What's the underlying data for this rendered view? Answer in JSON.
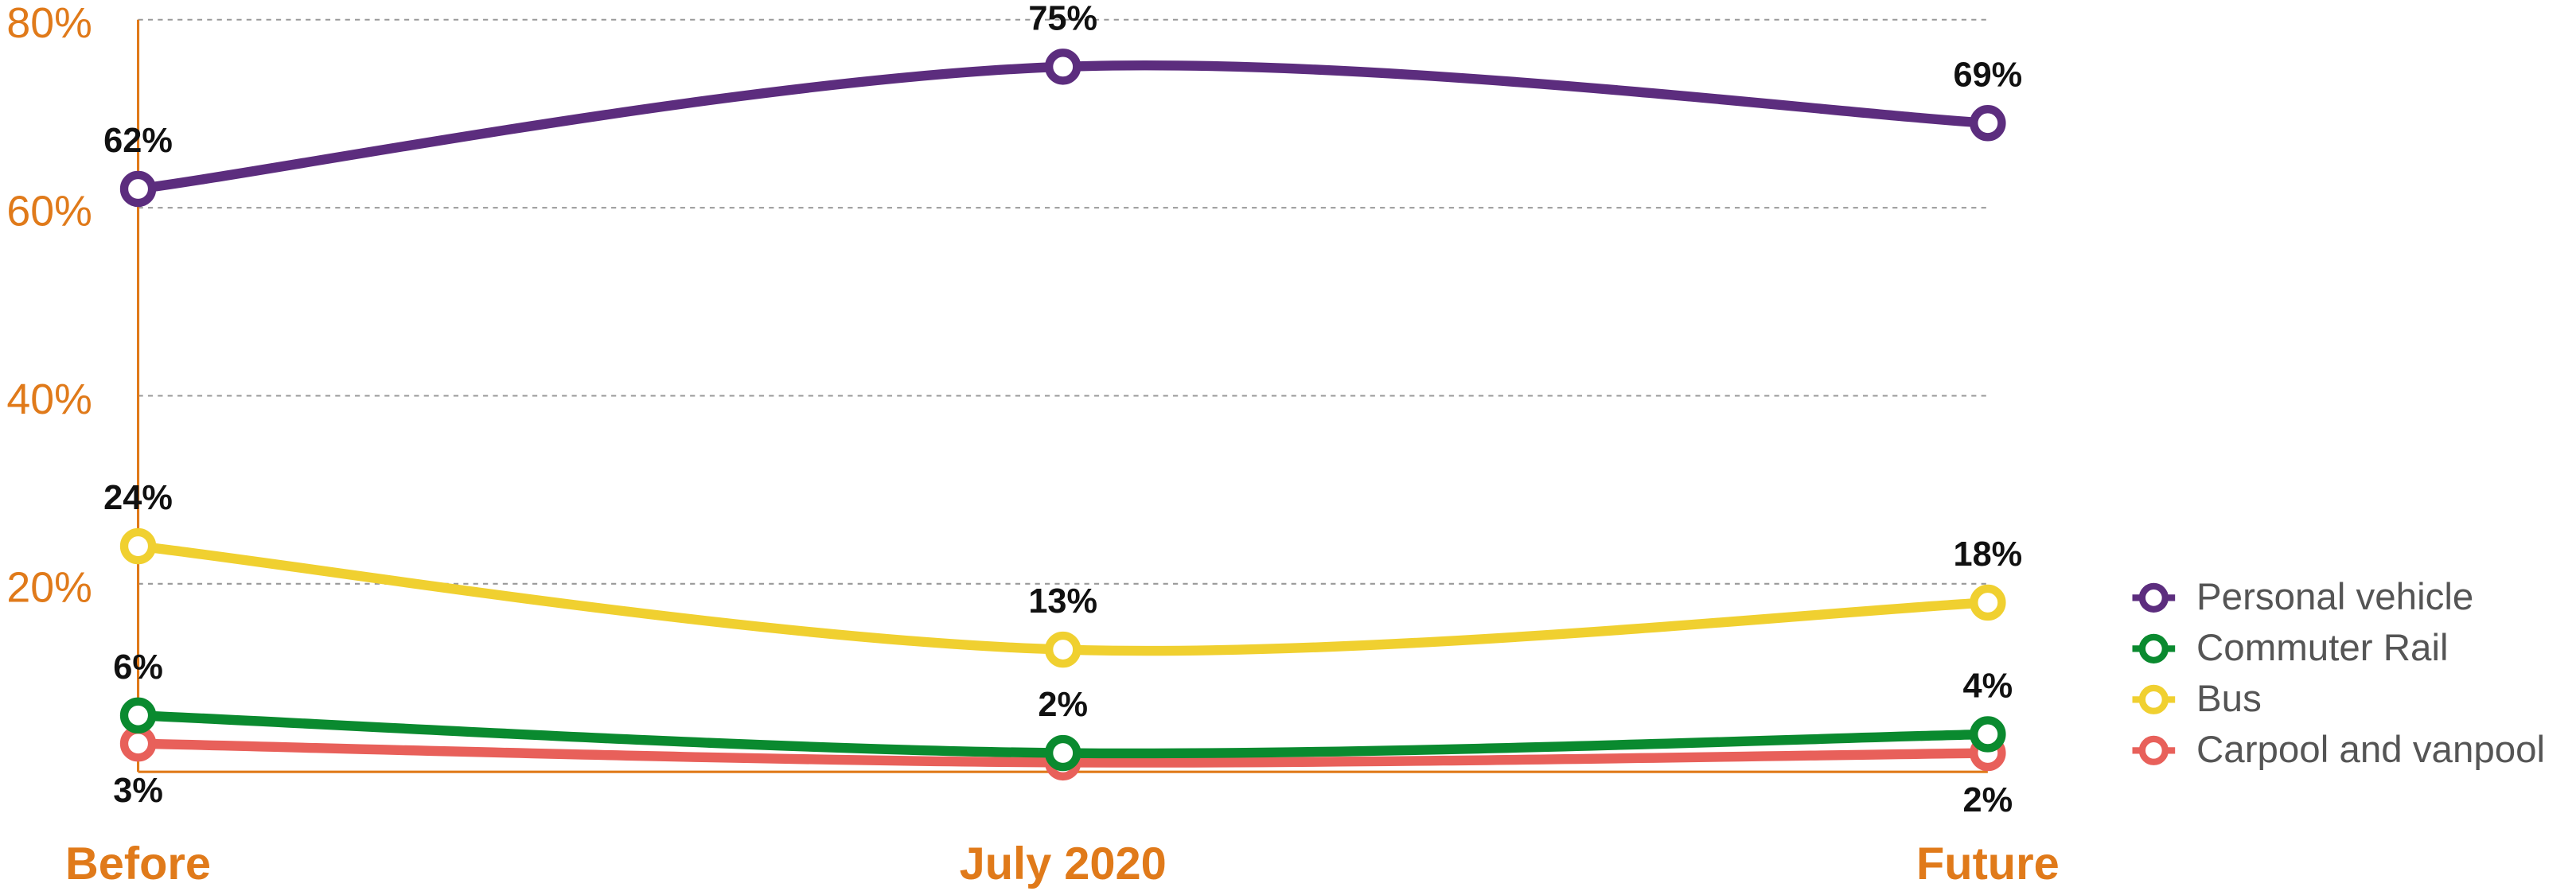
{
  "chart_data": {
    "type": "line",
    "categories": [
      "Before",
      "July 2020",
      "Future"
    ],
    "series": [
      {
        "name": "Personal vehicle",
        "color": "#5c2d7e",
        "values": [
          62,
          75,
          69
        ],
        "value_labels": [
          "62%",
          "75%",
          "69%"
        ]
      },
      {
        "name": "Commuter Rail",
        "color": "#0a8a2f",
        "values": [
          6,
          2,
          4
        ],
        "value_labels": [
          "6%",
          "2%",
          "4%"
        ]
      },
      {
        "name": "Bus",
        "color": "#f0d030",
        "values": [
          24,
          13,
          18
        ],
        "value_labels": [
          "24%",
          "13%",
          "18%"
        ]
      },
      {
        "name": "Carpool and vanpool",
        "color": "#e8605a",
        "values": [
          3,
          1,
          2
        ],
        "value_labels": [
          "3%",
          null,
          "2%"
        ]
      }
    ],
    "ylim": [
      0,
      80
    ],
    "yticks": [
      {
        "value": 20,
        "label": "20%"
      },
      {
        "value": 40,
        "label": "40%"
      },
      {
        "value": 60,
        "label": "60%"
      },
      {
        "value": 80,
        "label": "80%"
      }
    ],
    "grid": true,
    "legend": "right",
    "axis_color": "#e07a1a"
  }
}
